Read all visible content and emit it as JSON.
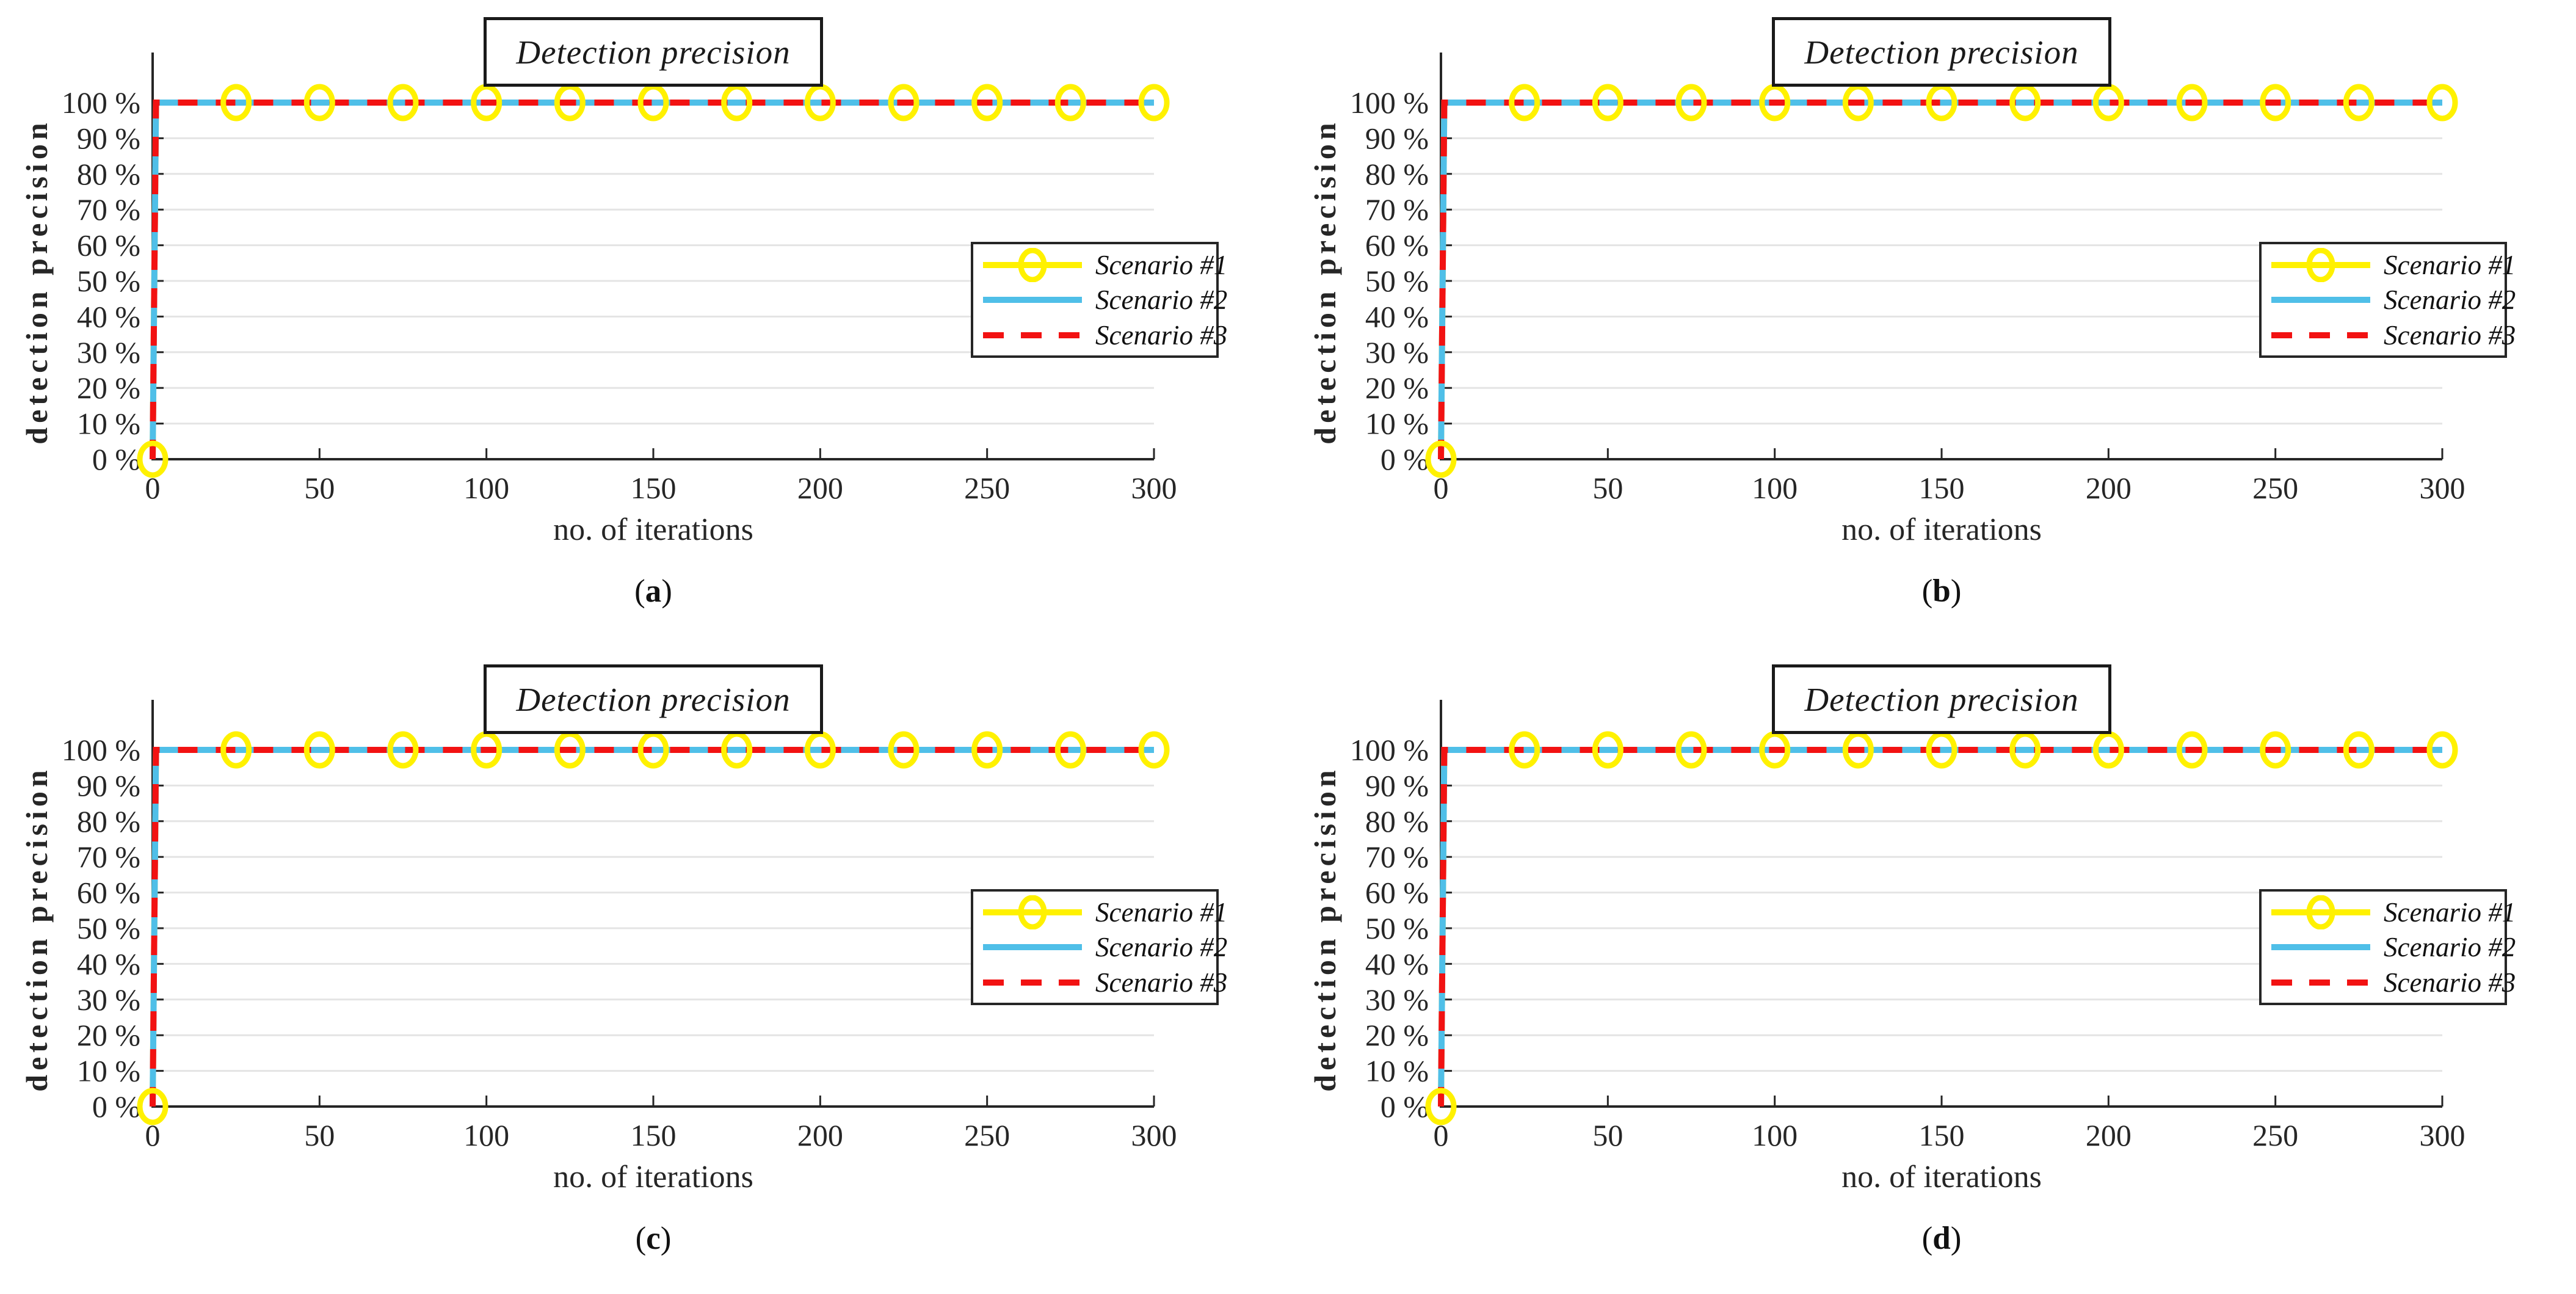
{
  "figure": {
    "background": "#ffffff",
    "panel_count": 4
  },
  "shared": {
    "title": "Detection precision",
    "x_axis": {
      "label": "no. of iterations",
      "range": [
        0,
        300
      ],
      "ticks": [
        0,
        50,
        100,
        150,
        200,
        250,
        300
      ]
    },
    "y_axis": {
      "label": "detection precision",
      "range_percent": [
        0,
        100
      ],
      "ticks_percent": [
        0,
        10,
        20,
        30,
        40,
        50,
        60,
        70,
        80,
        90,
        100
      ],
      "tick_suffix": " %"
    },
    "legend": {
      "position": "middle-right",
      "entries": [
        {
          "label": "Scenario #1",
          "color": "#fff100",
          "line": "solid",
          "marker": "open-circle"
        },
        {
          "label": "Scenario #2",
          "color": "#4fbfe8",
          "line": "solid",
          "marker": "none"
        },
        {
          "label": "Scenario #3",
          "color": "#f21212",
          "line": "dashed",
          "marker": "none"
        }
      ]
    },
    "colors": {
      "grid": "#e4e4e4",
      "axis": "#262626",
      "title_border": "#1a1a1a",
      "text": "#262626"
    },
    "grid": "horizontal-only"
  },
  "charts": [
    {
      "label_letter": "a",
      "label_text": "(a)"
    },
    {
      "label_letter": "b",
      "label_text": "(b)"
    },
    {
      "label_letter": "c",
      "label_text": "(c)"
    },
    {
      "label_letter": "d",
      "label_text": "(d)"
    }
  ],
  "chart_data": [
    {
      "type": "line",
      "panel": "a",
      "title": "Detection precision",
      "xlabel": "no. of iterations",
      "ylabel": "detection precision",
      "xlim": [
        0,
        300
      ],
      "ylim_percent": [
        0,
        100
      ],
      "series": [
        {
          "name": "Scenario #1",
          "x": [
            0,
            1,
            300
          ],
          "y_percent": [
            0,
            100,
            100
          ],
          "marker_x": [
            0,
            25,
            50,
            75,
            100,
            125,
            150,
            175,
            200,
            225,
            250,
            275,
            300
          ],
          "marker_y_percent": [
            0,
            100,
            100,
            100,
            100,
            100,
            100,
            100,
            100,
            100,
            100,
            100,
            100
          ]
        },
        {
          "name": "Scenario #2",
          "x": [
            0,
            1,
            300
          ],
          "y_percent": [
            0,
            100,
            100
          ]
        },
        {
          "name": "Scenario #3",
          "x": [
            0,
            1,
            300
          ],
          "y_percent": [
            0,
            100,
            100
          ]
        }
      ]
    },
    {
      "type": "line",
      "panel": "b",
      "title": "Detection precision",
      "xlabel": "no. of iterations",
      "ylabel": "detection precision",
      "xlim": [
        0,
        300
      ],
      "ylim_percent": [
        0,
        100
      ],
      "series": [
        {
          "name": "Scenario #1",
          "x": [
            0,
            1,
            300
          ],
          "y_percent": [
            0,
            100,
            100
          ],
          "marker_x": [
            0,
            25,
            50,
            75,
            100,
            125,
            150,
            175,
            200,
            225,
            250,
            275,
            300
          ],
          "marker_y_percent": [
            0,
            100,
            100,
            100,
            100,
            100,
            100,
            100,
            100,
            100,
            100,
            100,
            100
          ]
        },
        {
          "name": "Scenario #2",
          "x": [
            0,
            1,
            300
          ],
          "y_percent": [
            0,
            100,
            100
          ]
        },
        {
          "name": "Scenario #3",
          "x": [
            0,
            1,
            300
          ],
          "y_percent": [
            0,
            100,
            100
          ]
        }
      ]
    },
    {
      "type": "line",
      "panel": "c",
      "title": "Detection precision",
      "xlabel": "no. of iterations",
      "ylabel": "detection precision",
      "xlim": [
        0,
        300
      ],
      "ylim_percent": [
        0,
        100
      ],
      "series": [
        {
          "name": "Scenario #1",
          "x": [
            0,
            1,
            300
          ],
          "y_percent": [
            0,
            100,
            100
          ],
          "marker_x": [
            0,
            25,
            50,
            75,
            100,
            125,
            150,
            175,
            200,
            225,
            250,
            275,
            300
          ],
          "marker_y_percent": [
            0,
            100,
            100,
            100,
            100,
            100,
            100,
            100,
            100,
            100,
            100,
            100,
            100
          ]
        },
        {
          "name": "Scenario #2",
          "x": [
            0,
            1,
            300
          ],
          "y_percent": [
            0,
            100,
            100
          ]
        },
        {
          "name": "Scenario #3",
          "x": [
            0,
            1,
            300
          ],
          "y_percent": [
            0,
            100,
            100
          ]
        }
      ]
    },
    {
      "type": "line",
      "panel": "d",
      "title": "Detection precision",
      "xlabel": "no. of iterations",
      "ylabel": "detection precision",
      "xlim": [
        0,
        300
      ],
      "ylim_percent": [
        0,
        100
      ],
      "series": [
        {
          "name": "Scenario #1",
          "x": [
            0,
            1,
            300
          ],
          "y_percent": [
            0,
            100,
            100
          ],
          "marker_x": [
            0,
            25,
            50,
            75,
            100,
            125,
            150,
            175,
            200,
            225,
            250,
            275,
            300
          ],
          "marker_y_percent": [
            0,
            100,
            100,
            100,
            100,
            100,
            100,
            100,
            100,
            100,
            100,
            100,
            100
          ]
        },
        {
          "name": "Scenario #2",
          "x": [
            0,
            1,
            300
          ],
          "y_percent": [
            0,
            100,
            100
          ]
        },
        {
          "name": "Scenario #3",
          "x": [
            0,
            1,
            300
          ],
          "y_percent": [
            0,
            100,
            100
          ]
        }
      ]
    }
  ]
}
